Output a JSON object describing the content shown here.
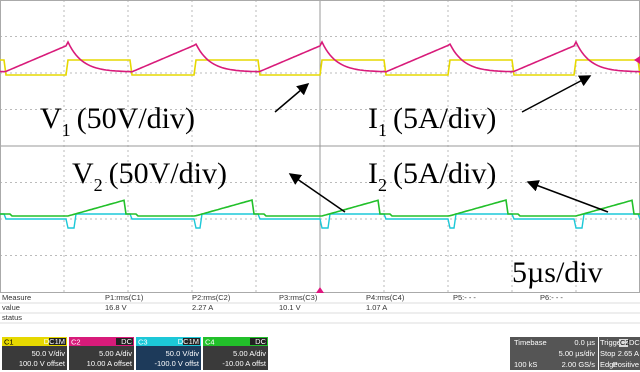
{
  "annotations": {
    "v1": {
      "main": "V",
      "sub": "1",
      "rest": "(50V/div)"
    },
    "i1": {
      "main": "I",
      "sub": "1",
      "rest": "(5A/div)"
    },
    "v2": {
      "main": "V",
      "sub": "2",
      "rest": "(50V/div)"
    },
    "i2": {
      "main": "I",
      "sub": "2",
      "rest": "(5A/div)"
    },
    "timescale": "5µs/div"
  },
  "measure": {
    "row_labels": [
      "Measure",
      "value",
      "status"
    ],
    "params": [
      {
        "name": "P1:rms(C1)",
        "value": "16.8 V"
      },
      {
        "name": "P2:rms(C2)",
        "value": "2.27 A"
      },
      {
        "name": "P3:rms(C3)",
        "value": "10.1 V"
      },
      {
        "name": "P4:rms(C4)",
        "value": "1.07 A"
      },
      {
        "name": "P5:- - -"
      },
      {
        "name": "P6:- - -"
      }
    ]
  },
  "channels": [
    {
      "name": "C1",
      "coupling": "DC1M",
      "scale": "50.0 V/div",
      "offset": "100.0 V offset"
    },
    {
      "name": "C2",
      "coupling": "DC",
      "scale": "5.00 A/div",
      "offset": "10.00 A offset"
    },
    {
      "name": "C3",
      "coupling": "DC1M",
      "scale": "50.0 V/div",
      "offset": "-100.0 V offst"
    },
    {
      "name": "C4",
      "coupling": "DC",
      "scale": "5.00 A/div",
      "offset": "-10.00 A offst"
    }
  ],
  "timebase": {
    "label": "Timebase",
    "delay": "0.0 µs",
    "scale": "5.00 µs/div",
    "samples": "100 kS",
    "rate": "2.00 GS/s"
  },
  "trigger": {
    "label": "Trigger",
    "source": "C2",
    "coupling": "DC",
    "mode": "Stop",
    "level": "2.65 A",
    "type": "Edge",
    "slope": "Positive"
  }
}
